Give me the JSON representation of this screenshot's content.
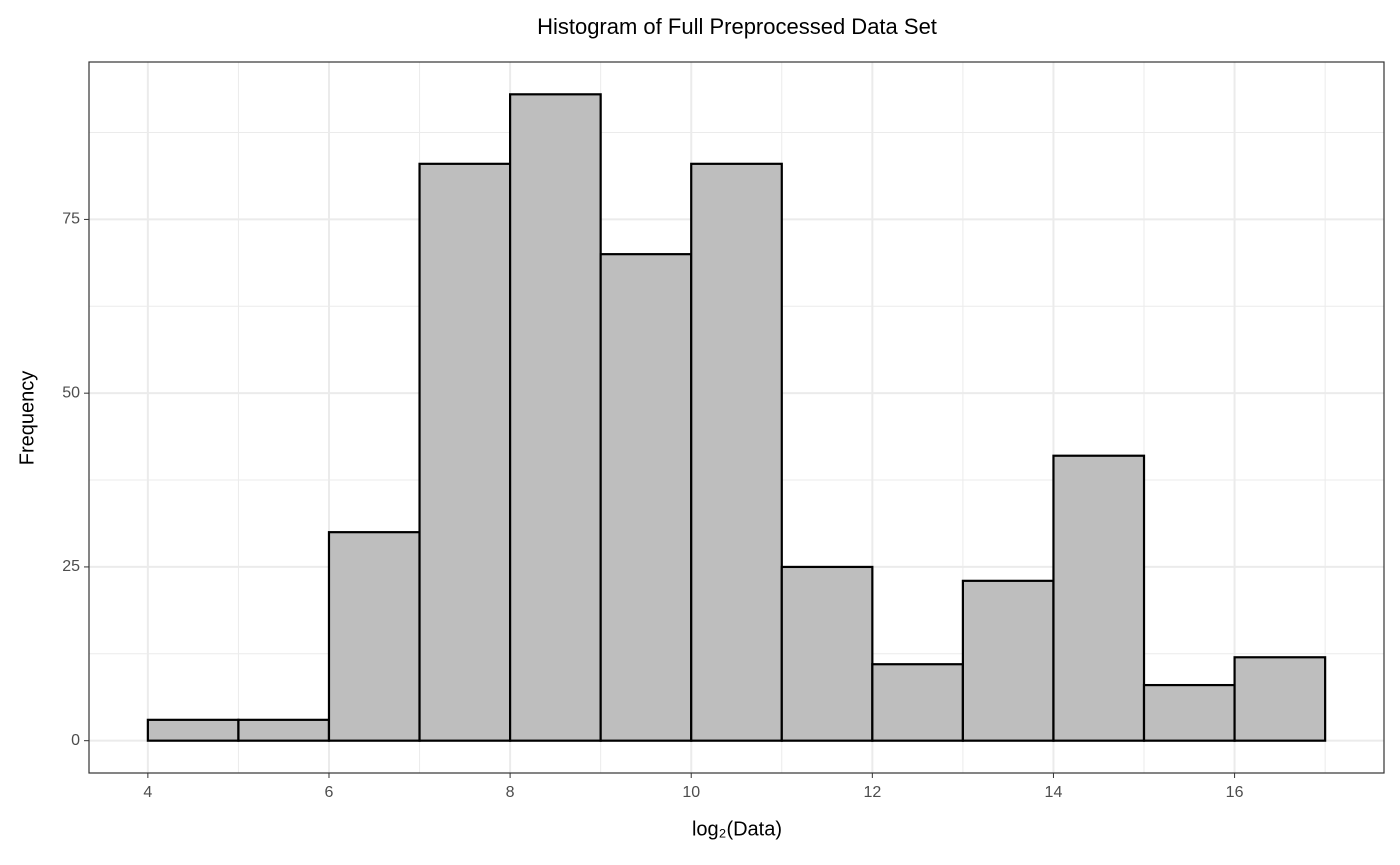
{
  "chart_data": {
    "type": "histogram",
    "title": "Histogram of Full Preprocessed Data Set",
    "x_label": "log₂(Data)",
    "y_label": "Frequency",
    "bins": [
      4,
      5,
      6,
      7,
      8,
      9,
      10,
      11,
      12,
      13,
      14,
      15,
      16,
      17
    ],
    "values": [
      3,
      3,
      30,
      83,
      93,
      70,
      83,
      25,
      11,
      23,
      41,
      8,
      12
    ],
    "color": "#bebebe",
    "edgecolor": "#000000",
    "xlim": [
      3.35,
      17.65
    ],
    "ylim": [
      -4.65,
      97.65
    ],
    "xticks": [
      4,
      6,
      8,
      10,
      12,
      14,
      16
    ],
    "yticks": [
      0,
      25,
      50,
      75
    ],
    "xminorticks": [
      5,
      7,
      9,
      11,
      13,
      15,
      17
    ],
    "yminorticks": [
      12.5,
      37.5,
      62.5,
      87.5
    ],
    "grid": true
  }
}
